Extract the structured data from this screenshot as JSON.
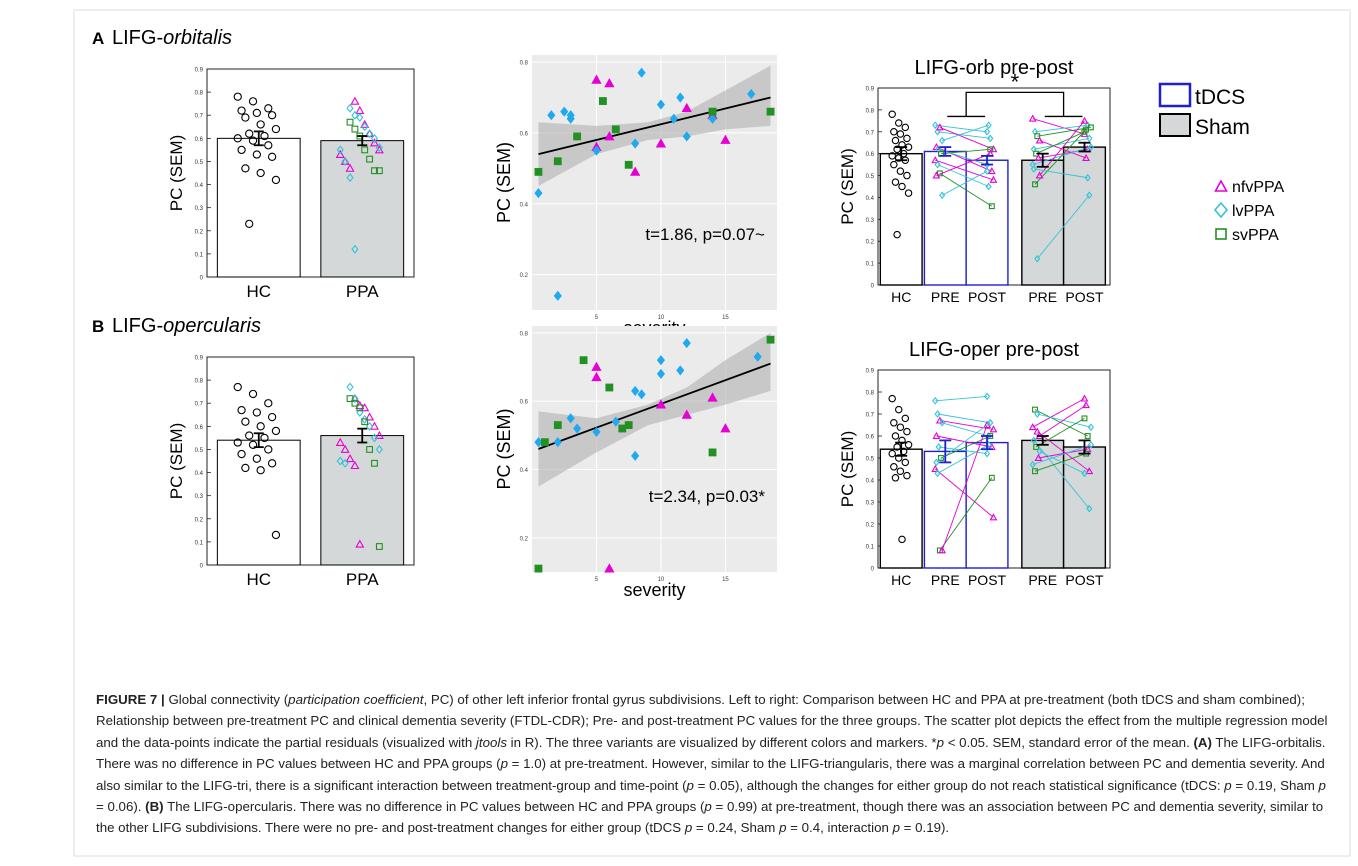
{
  "panels": {
    "A": {
      "letter": "A",
      "title_prefix": "LIFG-",
      "title_italic": "orbitalis"
    },
    "B": {
      "letter": "B",
      "title_prefix": "LIFG-",
      "title_italic": "opercularis"
    }
  },
  "legend": {
    "tdcs": "tDCS",
    "sham": "Sham",
    "nfv": "nfvPPA",
    "lv": "lvPPA",
    "sv": "svPPA",
    "colors": {
      "nfv": "#e600d4",
      "lv": "#33c3d6",
      "sv": "#239023",
      "hc": "#000000",
      "scatter_lv": "#1fa9f0",
      "tdcs_bar": "#1f1fd0",
      "sham_fill": "#d4d8d8"
    }
  },
  "caption": {
    "label": "FIGURE 7 |",
    "text1": " Global connectivity (",
    "italic1": "participation coefficient",
    "text2": ", PC) of other left inferior frontal gyrus subdivisions. Left to right: Comparison between HC and PPA at pre-treatment (both tDCS and sham combined); Relationship between pre-treatment PC and clinical dementia severity (FTDL-CDR); Pre- and post-treatment PC values for the three groups. The scatter plot depicts the effect from the multiple regression model and the data-points indicate the partial residuals (visualized with ",
    "italic2": "jtools",
    "text3": " in R). The three variants are visualized by different colors and markers. *",
    "p": "p",
    "text4": " < 0.05. SEM, standard error of the mean. ",
    "boldA": "(A)",
    "text5": " The LIFG-orbitalis. There was no difference in PC values between HC and PPA groups (",
    "text6": " = 1.0) at pre-treatment. However, similar to the LIFG-triangularis, there was a marginal correlation between PC and dementia severity. And also similar to the LIFG-tri, there is a significant interaction between treatment-group and time-point (",
    "text7": " = 0.05), although the changes for either group do not reach statistical significance (tDCS: ",
    "text8": " = 0.19, Sham ",
    "text9": " = 0.06). ",
    "boldB": "(B)",
    "text10": " The LIFG-opercularis. There was no difference in PC values between HC and PPA groups (",
    "text11": " = 0.99) at pre-treatment, though there was an association between PC and dementia severity, similar to the other LIFG subdivisions. There were no pre- and post-treatment changes for either group (tDCS ",
    "text12": " = 0.24, Sham ",
    "text13": " = 0.4, interaction ",
    "text14": " = 0.19)."
  },
  "chart_data": [
    {
      "id": "A-bar",
      "type": "bar",
      "title": "",
      "xlabel": "",
      "ylabel": "PC (SEM)",
      "ylim": [
        0,
        0.9
      ],
      "yticks": [
        0,
        0.1,
        0.2,
        0.3,
        0.4,
        0.5,
        0.6,
        0.7,
        0.8,
        0.9
      ],
      "categories": [
        "HC",
        "PPA"
      ],
      "values": [
        0.6,
        0.59
      ],
      "sem": [
        0.03,
        0.02
      ],
      "points": {
        "HC": [
          0.78,
          0.76,
          0.73,
          0.72,
          0.71,
          0.7,
          0.69,
          0.66,
          0.64,
          0.62,
          0.61,
          0.6,
          0.59,
          0.57,
          0.55,
          0.53,
          0.52,
          0.47,
          0.45,
          0.42,
          0.23
        ],
        "nfv": [
          0.76,
          0.72,
          0.66,
          0.62,
          0.58,
          0.55,
          0.53,
          0.5,
          0.47
        ],
        "lv": [
          0.73,
          0.7,
          0.69,
          0.65,
          0.62,
          0.6,
          0.56,
          0.55,
          0.5,
          0.43,
          0.12
        ],
        "sv": [
          0.67,
          0.64,
          0.61,
          0.55,
          0.51,
          0.46,
          0.46
        ]
      }
    },
    {
      "id": "A-scatter",
      "type": "scatter",
      "xlabel": "severity",
      "ylabel": "PC (SEM)",
      "xlim": [
        0,
        19
      ],
      "ylim": [
        0.1,
        0.82
      ],
      "xticks": [
        5,
        10,
        15
      ],
      "yticks": [
        0.2,
        0.4,
        0.6,
        0.8
      ],
      "annotation": "t=1.86, p=0.07~",
      "fit": {
        "x": [
          0.5,
          18.5
        ],
        "y": [
          0.54,
          0.7
        ]
      },
      "band_upper": [
        [
          0.5,
          0.63
        ],
        [
          5,
          0.62
        ],
        [
          9,
          0.63
        ],
        [
          12,
          0.66
        ],
        [
          15,
          0.72
        ],
        [
          18.5,
          0.79
        ]
      ],
      "band_lower": [
        [
          0.5,
          0.45
        ],
        [
          5,
          0.54
        ],
        [
          9,
          0.58
        ],
        [
          12,
          0.59
        ],
        [
          15,
          0.61
        ],
        [
          18.5,
          0.62
        ]
      ],
      "series": [
        {
          "name": "nfvPPA",
          "marker": "triangle",
          "points": [
            [
              5,
              0.75
            ],
            [
              6,
              0.74
            ],
            [
              5,
              0.56
            ],
            [
              6,
              0.59
            ],
            [
              8,
              0.49
            ],
            [
              10,
              0.57
            ],
            [
              12,
              0.67
            ],
            [
              14,
              0.65
            ],
            [
              15,
              0.58
            ]
          ]
        },
        {
          "name": "lvPPA",
          "marker": "diamond",
          "points": [
            [
              0.5,
              0.43
            ],
            [
              1.5,
              0.65
            ],
            [
              2.5,
              0.66
            ],
            [
              3,
              0.64
            ],
            [
              3,
              0.65
            ],
            [
              2,
              0.14
            ],
            [
              5,
              0.55
            ],
            [
              8,
              0.57
            ],
            [
              8.5,
              0.77
            ],
            [
              10,
              0.68
            ],
            [
              11,
              0.64
            ],
            [
              11.5,
              0.7
            ],
            [
              12,
              0.59
            ],
            [
              14,
              0.64
            ],
            [
              17,
              0.71
            ]
          ]
        },
        {
          "name": "svPPA",
          "marker": "square",
          "points": [
            [
              0.5,
              0.49
            ],
            [
              2,
              0.52
            ],
            [
              3.5,
              0.59
            ],
            [
              5.5,
              0.69
            ],
            [
              6.5,
              0.61
            ],
            [
              7.5,
              0.51
            ],
            [
              14,
              0.66
            ],
            [
              18.5,
              0.66
            ]
          ]
        }
      ]
    },
    {
      "id": "A-prepost",
      "type": "bar",
      "title": "LIFG-orb pre-post",
      "ylabel": "PC (SEM)",
      "ylim": [
        0,
        0.9
      ],
      "yticks": [
        0,
        0.1,
        0.2,
        0.3,
        0.4,
        0.5,
        0.6,
        0.7,
        0.8,
        0.9
      ],
      "categories": [
        "HC",
        "PRE",
        "POST",
        "PRE",
        "POST"
      ],
      "groups": [
        "HC",
        "tDCS",
        "tDCS",
        "Sham",
        "Sham"
      ],
      "values": [
        0.6,
        0.61,
        0.57,
        0.57,
        0.63
      ],
      "sem": [
        0.03,
        0.02,
        0.02,
        0.03,
        0.02
      ],
      "significance": "*",
      "hc_points": [
        0.78,
        0.74,
        0.72,
        0.7,
        0.69,
        0.67,
        0.66,
        0.64,
        0.63,
        0.62,
        0.6,
        0.59,
        0.58,
        0.57,
        0.55,
        0.52,
        0.5,
        0.47,
        0.45,
        0.42,
        0.23
      ],
      "tdcs_pairs": [
        [
          "lv",
          0.73,
          0.7
        ],
        [
          "lv",
          0.7,
          0.67
        ],
        [
          "nfv",
          0.72,
          0.62
        ],
        [
          "lv",
          0.66,
          0.73
        ],
        [
          "nfv",
          0.63,
          0.52
        ],
        [
          "lv",
          0.62,
          0.55
        ],
        [
          "sv",
          0.6,
          0.62
        ],
        [
          "nfv",
          0.57,
          0.48
        ],
        [
          "lv",
          0.55,
          0.45
        ],
        [
          "sv",
          0.51,
          0.36
        ],
        [
          "lv",
          0.41,
          0.52
        ],
        [
          "nfv",
          0.5,
          0.6
        ]
      ],
      "sham_pairs": [
        [
          "nfv",
          0.76,
          0.69
        ],
        [
          "lv",
          0.7,
          0.73
        ],
        [
          "sv",
          0.68,
          0.72
        ],
        [
          "nfv",
          0.66,
          0.58
        ],
        [
          "lv",
          0.62,
          0.67
        ],
        [
          "sv",
          0.6,
          0.7
        ],
        [
          "nfv",
          0.58,
          0.62
        ],
        [
          "lv",
          0.55,
          0.63
        ],
        [
          "sv",
          0.46,
          0.71
        ],
        [
          "lv",
          0.12,
          0.41
        ],
        [
          "nfv",
          0.5,
          0.75
        ],
        [
          "lv",
          0.53,
          0.49
        ]
      ]
    },
    {
      "id": "B-bar",
      "type": "bar",
      "title": "",
      "xlabel": "",
      "ylabel": "PC (SEM)",
      "ylim": [
        0,
        0.9
      ],
      "yticks": [
        0,
        0.1,
        0.2,
        0.3,
        0.4,
        0.5,
        0.6,
        0.7,
        0.8,
        0.9
      ],
      "categories": [
        "HC",
        "PPA"
      ],
      "values": [
        0.54,
        0.56
      ],
      "sem": [
        0.03,
        0.03
      ],
      "points": {
        "HC": [
          0.77,
          0.74,
          0.7,
          0.67,
          0.66,
          0.64,
          0.62,
          0.6,
          0.58,
          0.56,
          0.55,
          0.53,
          0.52,
          0.5,
          0.48,
          0.46,
          0.44,
          0.42,
          0.41,
          0.13
        ],
        "nfv": [
          0.72,
          0.69,
          0.68,
          0.64,
          0.6,
          0.56,
          0.53,
          0.5,
          0.46,
          0.43,
          0.09
        ],
        "lv": [
          0.77,
          0.72,
          0.66,
          0.63,
          0.6,
          0.55,
          0.5,
          0.45,
          0.44
        ],
        "sv": [
          0.72,
          0.7,
          0.68,
          0.62,
          0.5,
          0.44,
          0.08
        ]
      }
    },
    {
      "id": "B-scatter",
      "type": "scatter",
      "xlabel": "severity",
      "ylabel": "PC (SEM)",
      "xlim": [
        0,
        19
      ],
      "ylim": [
        0.1,
        0.82
      ],
      "xticks": [
        5,
        10,
        15
      ],
      "yticks": [
        0.2,
        0.4,
        0.6,
        0.8
      ],
      "annotation": "t=2.34, p=0.03*",
      "fit": {
        "x": [
          0.5,
          18.5
        ],
        "y": [
          0.46,
          0.71
        ]
      },
      "band_upper": [
        [
          0.5,
          0.57
        ],
        [
          5,
          0.55
        ],
        [
          9,
          0.59
        ],
        [
          12,
          0.64
        ],
        [
          15,
          0.72
        ],
        [
          18.5,
          0.8
        ]
      ],
      "band_lower": [
        [
          0.5,
          0.35
        ],
        [
          5,
          0.45
        ],
        [
          9,
          0.53
        ],
        [
          12,
          0.56
        ],
        [
          15,
          0.59
        ],
        [
          18.5,
          0.63
        ]
      ],
      "series": [
        {
          "name": "nfvPPA",
          "marker": "triangle",
          "points": [
            [
              5,
              0.7
            ],
            [
              5,
              0.67
            ],
            [
              6,
              0.11
            ],
            [
              10,
              0.59
            ],
            [
              12,
              0.56
            ],
            [
              14,
              0.61
            ],
            [
              15,
              0.52
            ]
          ]
        },
        {
          "name": "lvPPA",
          "marker": "diamond",
          "points": [
            [
              0.5,
              0.48
            ],
            [
              2,
              0.48
            ],
            [
              3,
              0.55
            ],
            [
              3.5,
              0.52
            ],
            [
              5,
              0.51
            ],
            [
              6.5,
              0.54
            ],
            [
              8,
              0.44
            ],
            [
              8,
              0.63
            ],
            [
              8.5,
              0.62
            ],
            [
              10,
              0.68
            ],
            [
              10,
              0.72
            ],
            [
              11.5,
              0.69
            ],
            [
              12,
              0.77
            ],
            [
              17.5,
              0.73
            ]
          ]
        },
        {
          "name": "svPPA",
          "marker": "square",
          "points": [
            [
              0.5,
              0.11
            ],
            [
              1,
              0.48
            ],
            [
              2,
              0.53
            ],
            [
              4,
              0.72
            ],
            [
              6,
              0.64
            ],
            [
              7,
              0.52
            ],
            [
              7.5,
              0.53
            ],
            [
              14,
              0.45
            ],
            [
              18.5,
              0.78
            ]
          ]
        }
      ]
    },
    {
      "id": "B-prepost",
      "type": "bar",
      "title": "LIFG-oper pre-post",
      "ylabel": "PC (SEM)",
      "ylim": [
        0,
        0.9
      ],
      "yticks": [
        0,
        0.1,
        0.2,
        0.3,
        0.4,
        0.5,
        0.6,
        0.7,
        0.8,
        0.9
      ],
      "categories": [
        "HC",
        "PRE",
        "POST",
        "PRE",
        "POST"
      ],
      "groups": [
        "HC",
        "tDCS",
        "tDCS",
        "Sham",
        "Sham"
      ],
      "values": [
        0.54,
        0.53,
        0.57,
        0.58,
        0.55
      ],
      "sem": [
        0.03,
        0.05,
        0.03,
        0.02,
        0.03
      ],
      "significance": "",
      "hc_points": [
        0.77,
        0.72,
        0.68,
        0.66,
        0.64,
        0.62,
        0.6,
        0.58,
        0.56,
        0.55,
        0.53,
        0.52,
        0.5,
        0.48,
        0.46,
        0.44,
        0.42,
        0.41,
        0.13
      ],
      "tdcs_pairs": [
        [
          "lv",
          0.76,
          0.78
        ],
        [
          "lv",
          0.7,
          0.66
        ],
        [
          "nfv",
          0.67,
          0.63
        ],
        [
          "lv",
          0.66,
          0.6
        ],
        [
          "nfv",
          0.6,
          0.55
        ],
        [
          "lv",
          0.55,
          0.52
        ],
        [
          "sv",
          0.5,
          0.6
        ],
        [
          "nfv",
          0.45,
          0.23
        ],
        [
          "lv",
          0.43,
          0.56
        ],
        [
          "sv",
          0.08,
          0.41
        ],
        [
          "nfv",
          0.08,
          0.65
        ],
        [
          "lv",
          0.48,
          0.66
        ]
      ],
      "sham_pairs": [
        [
          "nfv",
          0.64,
          0.77
        ],
        [
          "sv",
          0.72,
          0.6
        ],
        [
          "lv",
          0.7,
          0.64
        ],
        [
          "nfv",
          0.6,
          0.74
        ],
        [
          "lv",
          0.58,
          0.27
        ],
        [
          "sv",
          0.55,
          0.68
        ],
        [
          "nfv",
          0.5,
          0.54
        ],
        [
          "lv",
          0.47,
          0.56
        ],
        [
          "sv",
          0.44,
          0.52
        ],
        [
          "nfv",
          0.62,
          0.44
        ],
        [
          "lv",
          0.53,
          0.43
        ]
      ]
    }
  ]
}
